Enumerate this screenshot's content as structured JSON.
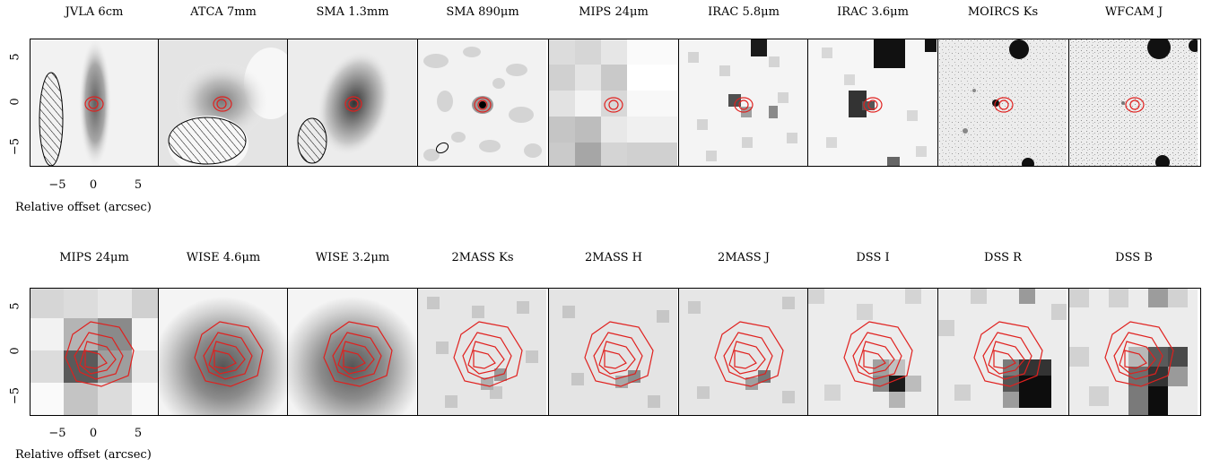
{
  "row1": {
    "titles": [
      "JVLA 6cm",
      "ATCA 7mm",
      "SMA 1.3mm",
      "SMA 890μm",
      "MIPS 24μm",
      "IRAC 5.8μm",
      "IRAC 3.6μm",
      "MOIRCS Ks",
      "WFCAM J"
    ]
  },
  "row2": {
    "titles": [
      "MIPS 24μm",
      "WISE 4.6μm",
      "WISE 3.2μm",
      "2MASS Ks",
      "2MASS H",
      "2MASS J",
      "DSS I",
      "DSS R",
      "DSS B"
    ]
  },
  "axes": {
    "x_label": "Relative offset (arcsec)",
    "x_ticks": [
      "−5",
      "0",
      "5"
    ],
    "y_ticks": [
      "5",
      "0",
      "−5"
    ]
  },
  "colors": {
    "contour": "#e0201e",
    "frame": "#000000"
  }
}
